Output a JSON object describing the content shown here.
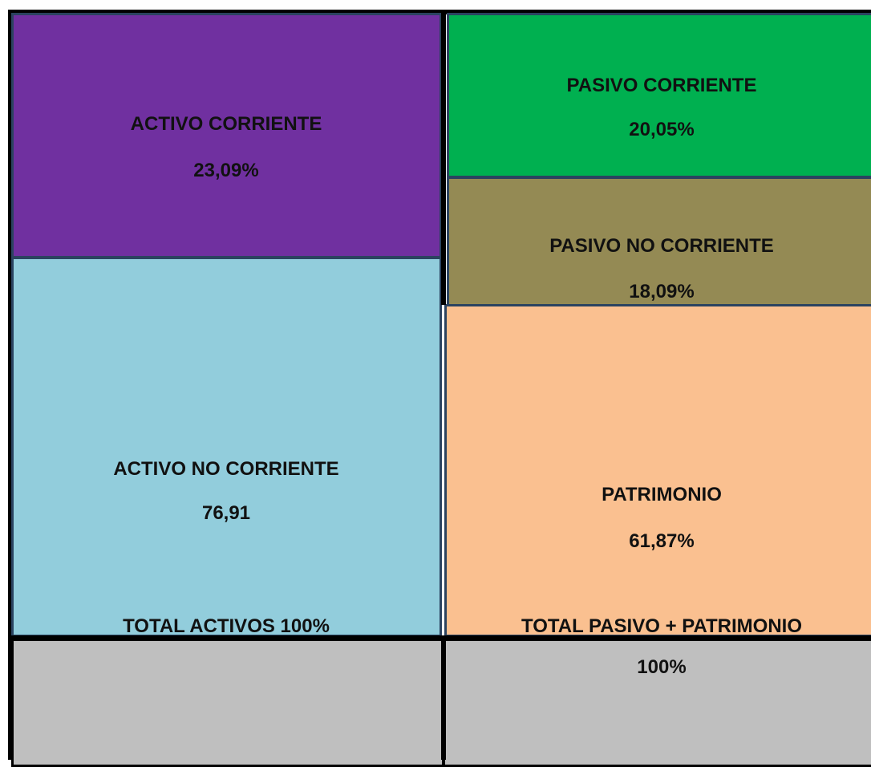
{
  "blocks": [
    {
      "label": "ACTIVO CORRIENTE",
      "value": "23,09%"
    },
    {
      "label": "ACTIVO NO CORRIENTE",
      "value": "76,91"
    },
    {
      "label": "PASIVO CORRIENTE",
      "value": "20,05%"
    },
    {
      "label": "PASIVO NO CORRIENTE",
      "value": "18,09%"
    },
    {
      "label": "PATRIMONIO",
      "value": "61,87%"
    }
  ],
  "totals": [
    {
      "label": "TOTAL ACTIVOS 100%"
    },
    {
      "label": "TOTAL PASIVO + PATRIMONIO",
      "value": "100%"
    }
  ]
}
